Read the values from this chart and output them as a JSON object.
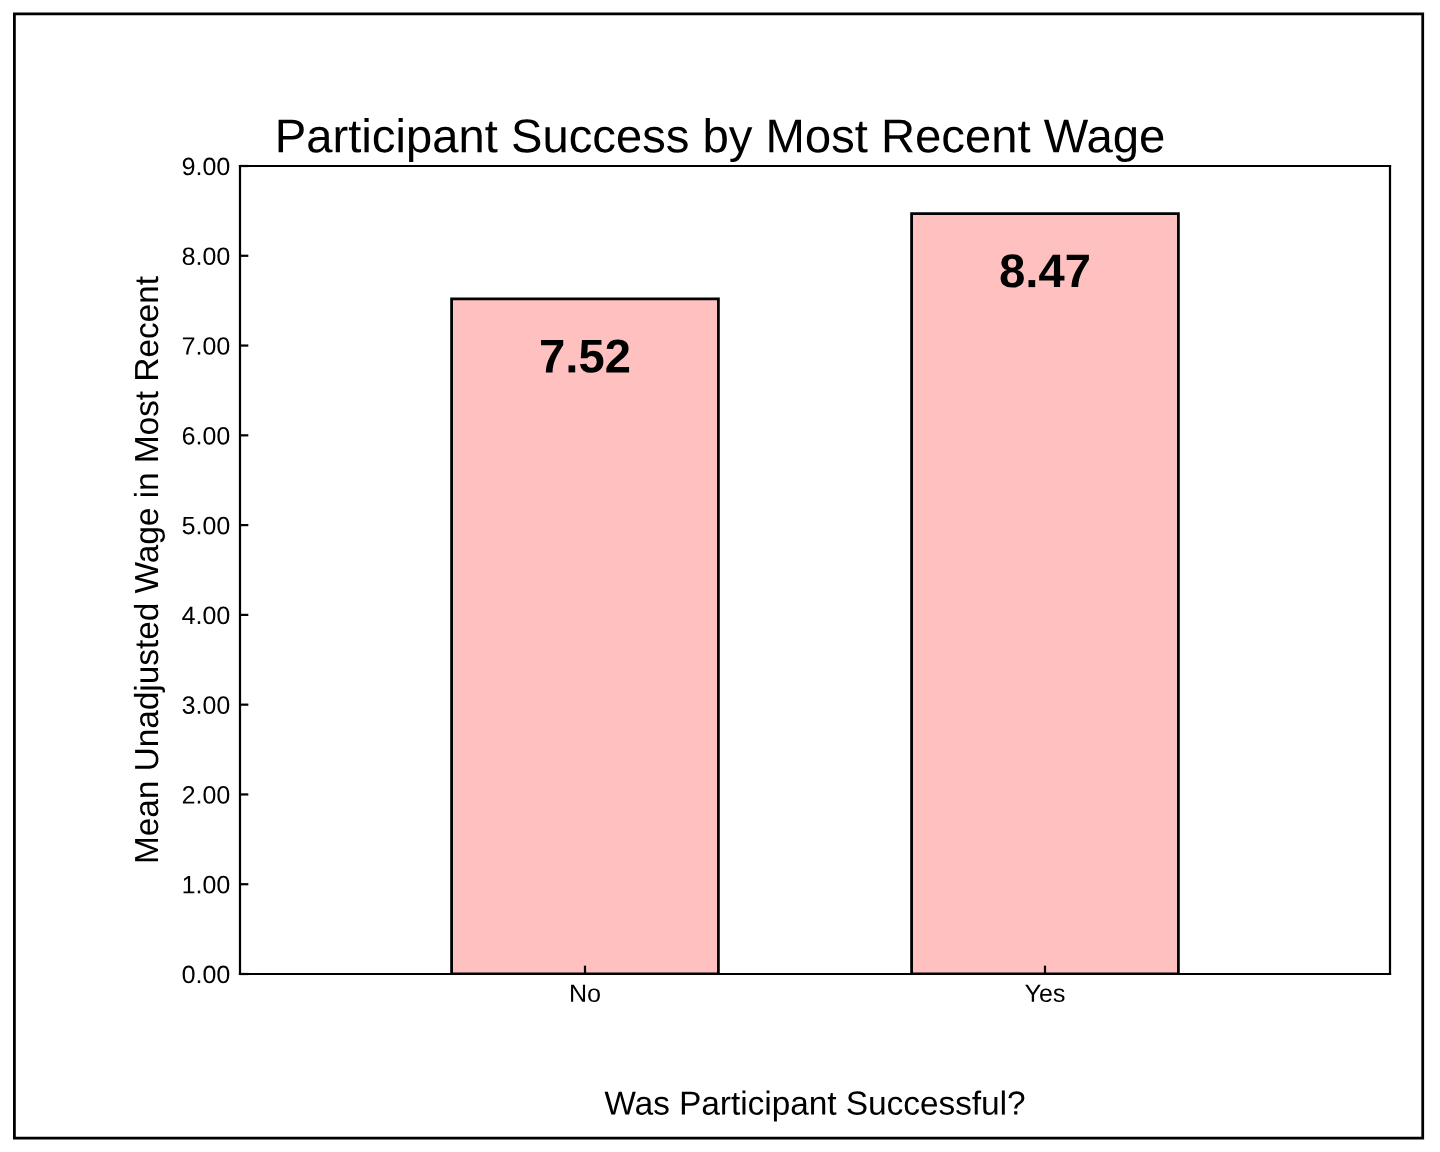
{
  "chart_data": {
    "type": "bar",
    "title": "Participant Success by Most Recent Wage",
    "xlabel": "Was Participant Successful?",
    "ylabel": "Mean Unadjusted Wage in Most Recent",
    "categories": [
      "No",
      "Yes"
    ],
    "values": [
      7.52,
      8.47
    ],
    "color": "#ffc0c0",
    "data_labels": true,
    "ylim": [
      0,
      9
    ],
    "yticks": [
      {
        "value": 0,
        "label": "0.00"
      },
      {
        "value": 1,
        "label": "1.00"
      },
      {
        "value": 2,
        "label": "2.00"
      },
      {
        "value": 3,
        "label": "3.00"
      },
      {
        "value": 4,
        "label": "4.00"
      },
      {
        "value": 5,
        "label": "5.00"
      },
      {
        "value": 6,
        "label": "6.00"
      },
      {
        "value": 7,
        "label": "7.00"
      },
      {
        "value": 8,
        "label": "8.00"
      },
      {
        "value": 9,
        "label": "9.00"
      }
    ],
    "grid": false,
    "legend": false
  }
}
